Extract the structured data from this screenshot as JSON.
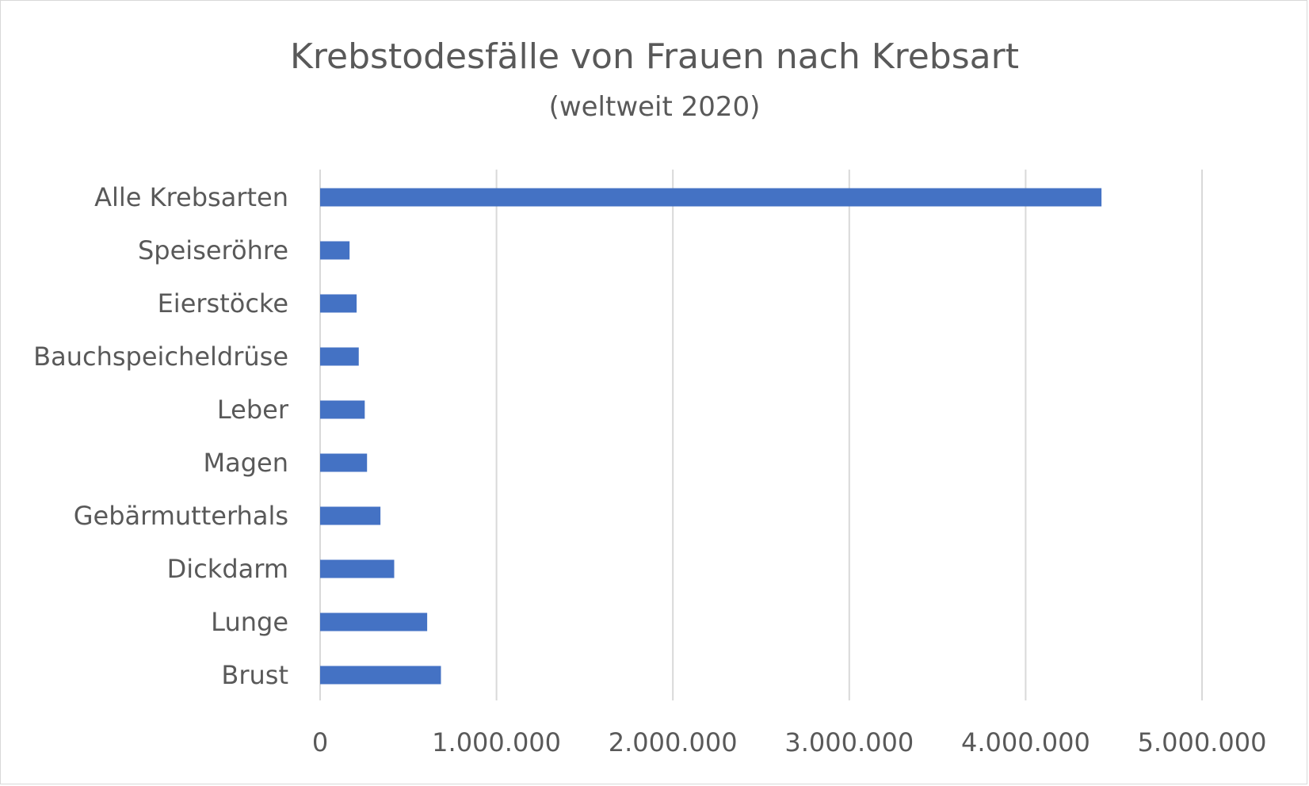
{
  "chart_data": {
    "type": "bar",
    "orientation": "horizontal",
    "title": "Krebstodesfälle von Frauen nach Krebsart",
    "subtitle": "(weltweit 2020)",
    "categories": [
      "Alle Krebsarten",
      "Speiseröhre",
      "Eierstöcke",
      "Bauchspeicheldrüse",
      "Leber",
      "Magen",
      "Gebärmutterhals",
      "Dickdarm",
      "Lunge",
      "Brust"
    ],
    "values": [
      4430000,
      167000,
      207000,
      219000,
      253000,
      266000,
      342000,
      420000,
      607000,
      685000
    ],
    "xlim": [
      0,
      5000000
    ],
    "ticks": [
      0,
      1000000,
      2000000,
      3000000,
      4000000,
      5000000
    ],
    "tick_labels": [
      "0",
      "1.000.000",
      "2.000.000",
      "3.000.000",
      "4.000.000",
      "5.000.000"
    ],
    "grid": true,
    "legend": "none",
    "bar_color": "#4472c4",
    "grid_color": "#d9d9d9"
  }
}
